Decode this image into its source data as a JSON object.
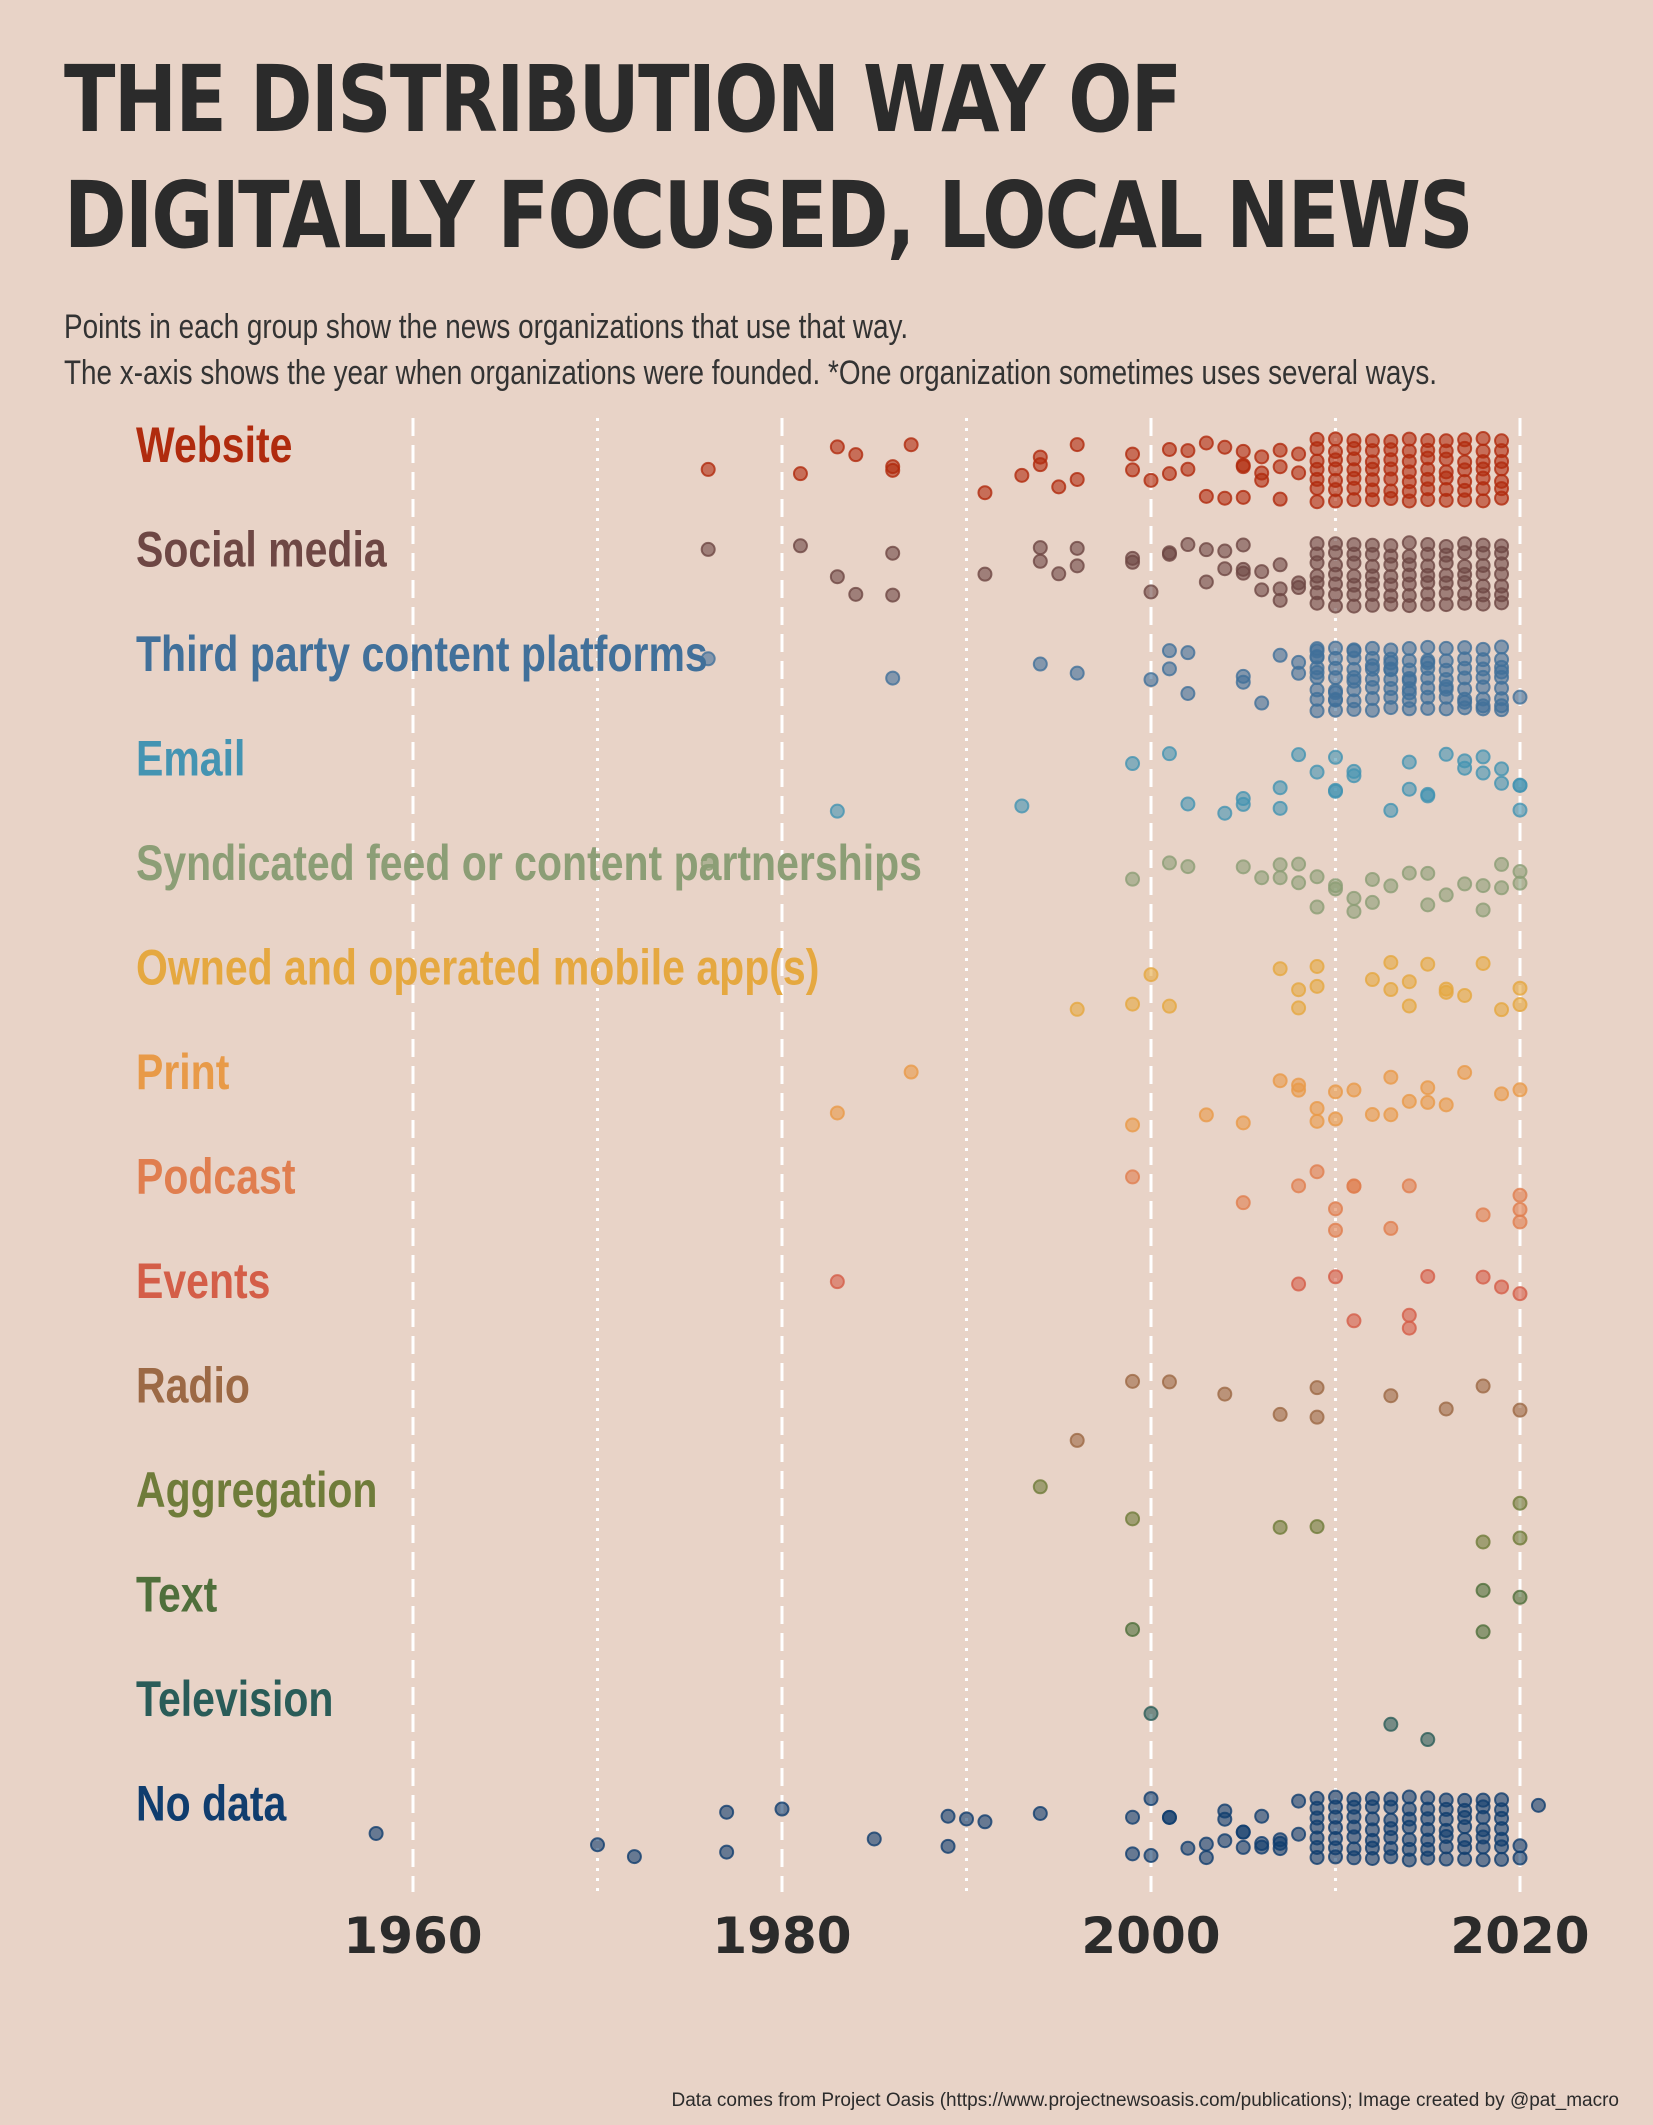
{
  "title_line1": "THE DISTRIBUTION  WAY OF",
  "title_line2": "DIGITALLY FOCUSED, LOCAL NEWS",
  "subtitle_line1": "Points in each group show the news organizations  that use that way.",
  "subtitle_line2": "The x-axis shows the year when organizations were founded. *One organization  sometimes uses several ways.",
  "caption": "Data comes from Project Oasis (https://www.projectnewsoasis.com/publications); Image created by @pat_macro",
  "chart_data": {
    "type": "scatter",
    "xlim": [
      1941,
      2024
    ],
    "x_ticks": [
      1960,
      1980,
      2000,
      2020
    ],
    "dashed_gridlines": [
      1960,
      1980,
      2000,
      2020
    ],
    "dotted_gridlines": [
      1970,
      1990,
      2010
    ],
    "groups": [
      {
        "name": "Website",
        "color": "#b02b0e",
        "x": [
          1976,
          1981,
          1983,
          1984,
          1986,
          1986,
          1987,
          1991,
          1993,
          1994,
          1994,
          1995,
          1996,
          1996,
          1999,
          1999,
          2000,
          2001,
          2001,
          2002,
          2002,
          2003,
          2003,
          2004,
          2004,
          2005,
          2005,
          2005,
          2005,
          2006,
          2006,
          2006,
          2007,
          2007,
          2007,
          2008,
          2008
        ],
        "dense": [
          2009,
          2019
        ]
      },
      {
        "name": "Social media",
        "color": "#6e4744",
        "x": [
          1976,
          1981,
          1983,
          1984,
          1986,
          1986,
          1991,
          1994,
          1994,
          1995,
          1996,
          1996,
          1999,
          1999,
          2000,
          2001,
          2001,
          2002,
          2003,
          2003,
          2004,
          2004,
          2005,
          2005,
          2005,
          2006,
          2006,
          2007,
          2007,
          2007,
          2008,
          2008
        ],
        "dense": [
          2009,
          2019
        ]
      },
      {
        "name": "Third party content platforms",
        "color": "#41709a",
        "x": [
          1976,
          1986,
          1994,
          1996,
          2000,
          2001,
          2001,
          2002,
          2002,
          2005,
          2005,
          2006,
          2007,
          2008,
          2008,
          2009,
          2009,
          2009,
          2010,
          2010,
          2011,
          2011,
          2012,
          2013,
          2013,
          2014,
          2014,
          2015,
          2016,
          2017,
          2018,
          2019,
          2019,
          2020
        ],
        "dense": [
          2009,
          2019
        ]
      },
      {
        "name": "Email",
        "color": "#4494b2",
        "x": [
          1983,
          1993,
          1999,
          2001,
          2002,
          2004,
          2005,
          2005,
          2007,
          2007,
          2008,
          2009,
          2010,
          2010,
          2010,
          2011,
          2011,
          2013,
          2014,
          2014,
          2015,
          2015,
          2016,
          2017,
          2017,
          2018,
          2018,
          2019,
          2019,
          2020,
          2020,
          2020
        ]
      },
      {
        "name": "Syndicated feed or content partnerships",
        "color": "#8c9e76",
        "x": [
          1976,
          1999,
          2001,
          2002,
          2005,
          2006,
          2007,
          2007,
          2008,
          2008,
          2009,
          2009,
          2010,
          2010,
          2011,
          2011,
          2012,
          2012,
          2013,
          2014,
          2015,
          2015,
          2016,
          2017,
          2018,
          2018,
          2019,
          2019,
          2020,
          2020
        ]
      },
      {
        "name": "Owned and operated mobile app(s)",
        "color": "#e5a840",
        "x": [
          1996,
          1999,
          2000,
          2001,
          2007,
          2008,
          2008,
          2009,
          2009,
          2012,
          2013,
          2013,
          2014,
          2014,
          2015,
          2016,
          2016,
          2017,
          2018,
          2019,
          2020,
          2020
        ]
      },
      {
        "name": "Print",
        "color": "#e89a48",
        "x": [
          1983,
          1987,
          1999,
          2003,
          2005,
          2007,
          2008,
          2008,
          2009,
          2009,
          2010,
          2010,
          2011,
          2012,
          2013,
          2013,
          2014,
          2015,
          2015,
          2016,
          2017,
          2019,
          2020
        ]
      },
      {
        "name": "Podcast",
        "color": "#e07e4f",
        "x": [
          1999,
          2005,
          2008,
          2009,
          2010,
          2010,
          2011,
          2011,
          2013,
          2014,
          2018,
          2020,
          2020,
          2020
        ]
      },
      {
        "name": "Events",
        "color": "#d45e48",
        "x": [
          1983,
          2008,
          2010,
          2011,
          2014,
          2014,
          2015,
          2018,
          2019,
          2020
        ]
      },
      {
        "name": "Radio",
        "color": "#9c6945",
        "x": [
          1996,
          1999,
          2001,
          2004,
          2007,
          2009,
          2009,
          2013,
          2016,
          2018,
          2020
        ]
      },
      {
        "name": "Aggregation",
        "color": "#6f7c3a",
        "x": [
          1994,
          1999,
          2007,
          2009,
          2018,
          2020,
          2020
        ]
      },
      {
        "name": "Text",
        "color": "#4f6f3b",
        "x": [
          1999,
          2018,
          2018,
          2020
        ]
      },
      {
        "name": "Television",
        "color": "#2a5c58",
        "x": [
          2000,
          2013,
          2015
        ]
      },
      {
        "name": "No data",
        "color": "#103d6e",
        "x": [
          1958,
          1970,
          1972,
          1977,
          1977,
          1980,
          1985,
          1989,
          1989,
          1990,
          1991,
          1994,
          1999,
          1999,
          2000,
          2000,
          2001,
          2001,
          2002,
          2003,
          2003,
          2004,
          2004,
          2004,
          2005,
          2005,
          2005,
          2006,
          2006,
          2006,
          2007,
          2007,
          2007,
          2008,
          2008,
          2020,
          2020,
          2021
        ],
        "dense": [
          2009,
          2019
        ]
      }
    ]
  }
}
